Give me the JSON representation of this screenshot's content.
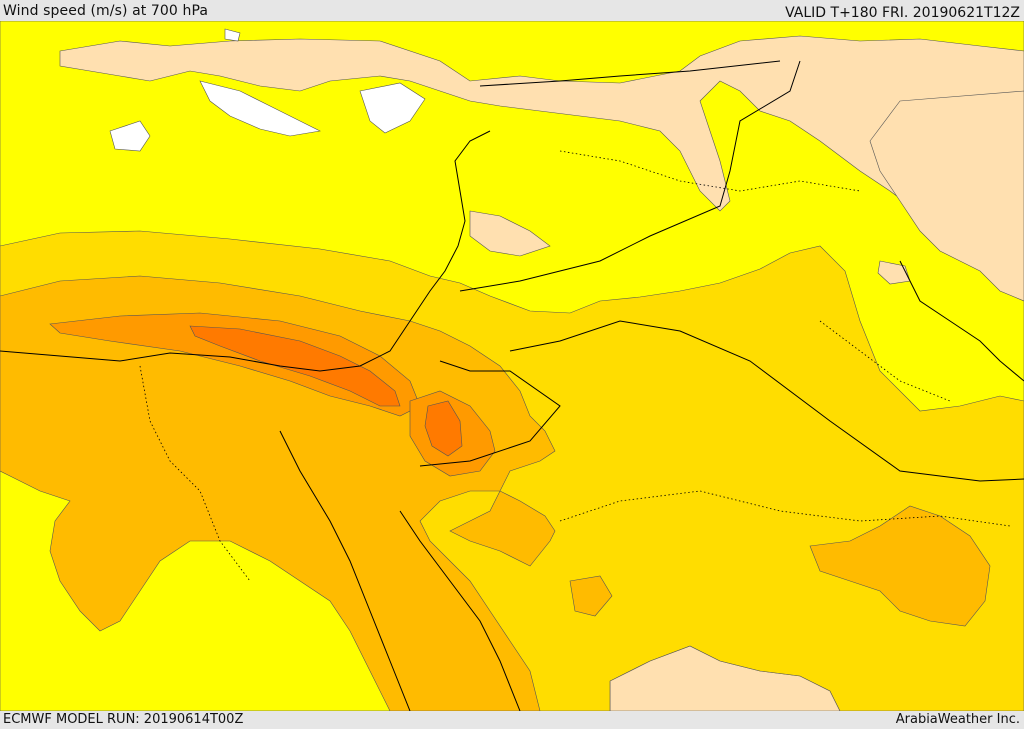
{
  "header": {
    "title": "Wind speed (m/s) at 700 hPa",
    "valid_time": "VALID T+180 FRI. 20190621T12Z"
  },
  "footer": {
    "model_run": "ECMWF MODEL RUN: 20190614T00Z",
    "credit": "ArabiaWeather Inc."
  },
  "palette": {
    "lt_5": "#ffffff",
    "5_10": "#ffe0b0",
    "10_15": "#ffff00",
    "15_20": "#ffdd00",
    "20_25": "#ffbb00",
    "25_30": "#ff9a00",
    "30_35": "#ff7a00",
    "outline": "#000000"
  }
}
